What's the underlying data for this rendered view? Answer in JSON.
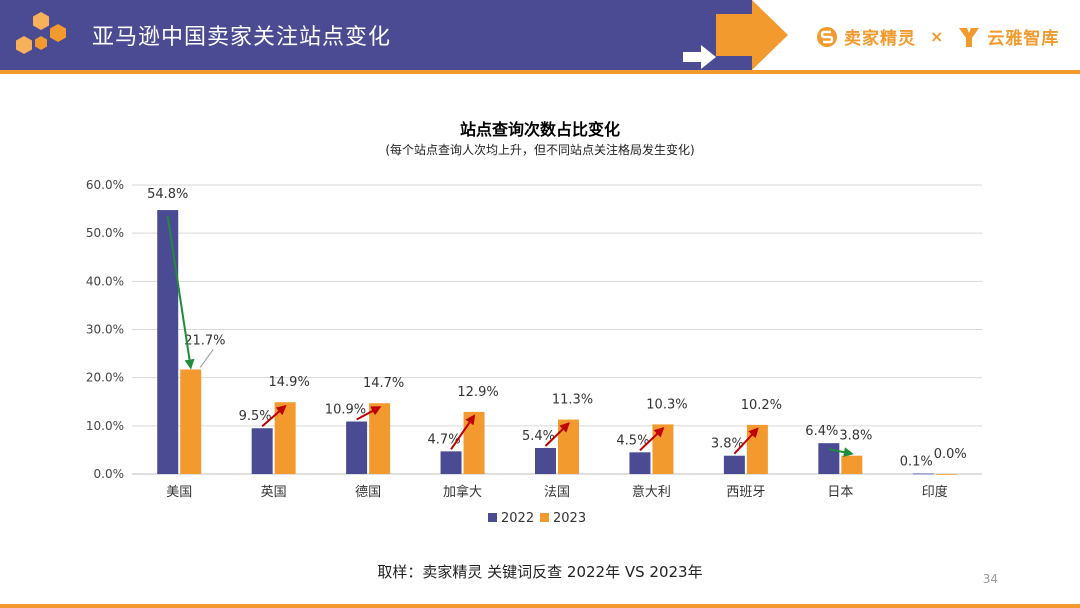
{
  "header": {
    "title": "亚马逊中国卖家关注站点变化",
    "brand_left": "卖家精灵",
    "brand_sep": "×",
    "brand_right": "云雅智库"
  },
  "colors": {
    "header_band": "#4b4b94",
    "accent": "#f29a2e",
    "series_2022": "#4b4b94",
    "series_2023": "#f29a2e",
    "arrow_up": "#c00000",
    "arrow_down": "#1e8c3a"
  },
  "icons": [
    "hexagon-logo-icon",
    "arrow-right-icon",
    "brand-s-icon",
    "brand-y-icon"
  ],
  "chart_data": {
    "type": "bar",
    "title": "站点查询次数占比变化",
    "subtitle": "(每个站点查询人次均上升，但不同站点关注格局发生变化)",
    "categories": [
      "美国",
      "英国",
      "德国",
      "加拿大",
      "法国",
      "意大利",
      "西班牙",
      "日本",
      "印度"
    ],
    "series": [
      {
        "name": "2022",
        "values": [
          54.8,
          9.5,
          10.9,
          4.7,
          5.4,
          4.5,
          3.8,
          6.4,
          0.1
        ],
        "labels": [
          "54.8%",
          "9.5%",
          "10.9%",
          "4.7%",
          "5.4%",
          "4.5%",
          "3.8%",
          "6.4%",
          "0.1%"
        ]
      },
      {
        "name": "2023",
        "values": [
          21.7,
          14.9,
          14.7,
          12.9,
          11.3,
          10.3,
          10.2,
          3.8,
          0.0
        ],
        "labels": [
          "21.7%",
          "14.9%",
          "14.7%",
          "12.9%",
          "11.3%",
          "10.3%",
          "10.2%",
          "3.8%",
          "0.0%"
        ]
      }
    ],
    "yticks": [
      "0.0%",
      "10.0%",
      "20.0%",
      "30.0%",
      "40.0%",
      "50.0%",
      "60.0%"
    ],
    "ylim": [
      0,
      60
    ],
    "grid": true,
    "legend_position": "bottom"
  },
  "footer": {
    "source": "取样：卖家精灵 关键词反查 2022年 VS 2023年",
    "page_number": "34"
  }
}
